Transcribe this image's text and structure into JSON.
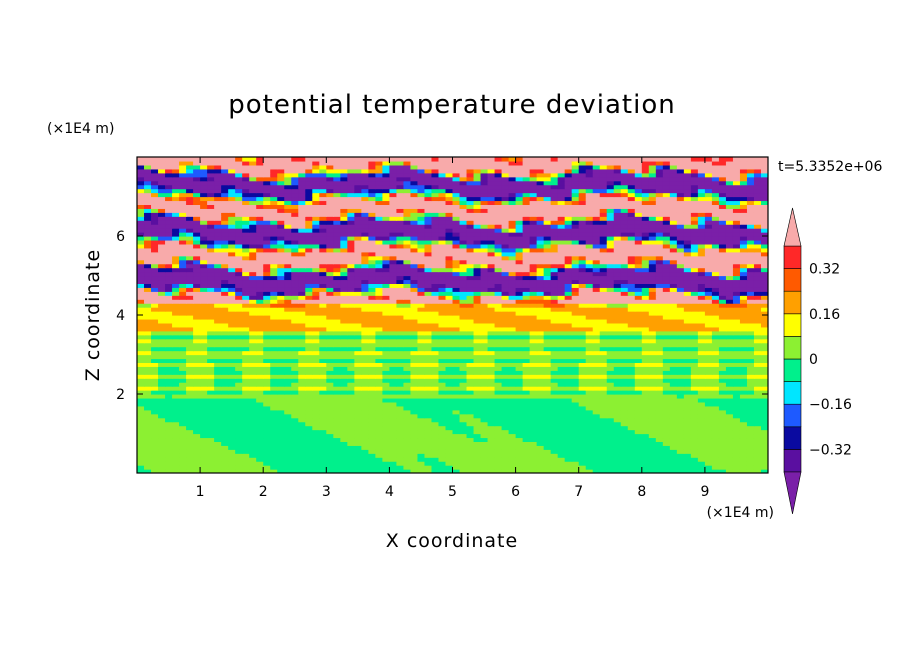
{
  "chart_data": {
    "type": "heatmap",
    "title": "potential temperature deviation",
    "xlabel": "X coordinate",
    "ylabel": "Z coordinate",
    "x_unit": "(×1E4 m)",
    "y_unit": "(×1E4 m)",
    "time_label": "t=5.3352e+06",
    "xlim": [
      0,
      10
    ],
    "ylim": [
      0,
      8
    ],
    "x_ticks": [
      "1",
      "2",
      "3",
      "4",
      "5",
      "6",
      "7",
      "8",
      "9"
    ],
    "y_ticks": [
      "2",
      "4",
      "6"
    ],
    "colorbar": {
      "levels": [
        -0.4,
        -0.32,
        -0.24,
        -0.16,
        -0.08,
        0,
        0.08,
        0.16,
        0.24,
        0.32,
        0.4
      ],
      "tick_labels": [
        "0.32",
        "0.16",
        "0",
        "−0.16",
        "−0.32"
      ],
      "tick_values": [
        0.32,
        0.16,
        0,
        -0.16,
        -0.32
      ],
      "colors": [
        "#7a1fa8",
        "#5a0fa0",
        "#0a0aa0",
        "#1e5aff",
        "#00e6ff",
        "#00f08c",
        "#8cf032",
        "#ffff00",
        "#ffa000",
        "#ff5a00",
        "#ff2828",
        "#f8aaaa"
      ],
      "extend": "both"
    },
    "bands": [
      {
        "z": [
          0.0,
          1.9
        ],
        "description": "mixed green / light-green",
        "dominant": [
          -0.04,
          0.04
        ]
      },
      {
        "z": [
          1.9,
          3.6
        ],
        "description": "green layers with thin cyan/yellow lines",
        "dominant": [
          0.0,
          0.08
        ]
      },
      {
        "z": [
          3.6,
          4.3
        ],
        "description": "yellow layer",
        "dominant": [
          0.16,
          0.24
        ]
      },
      {
        "z": [
          4.3,
          6.2
        ],
        "description": "alternating purple / pink turbulent layers",
        "dominant": [
          -0.4,
          0.4
        ]
      },
      {
        "z": [
          6.2,
          8.0
        ],
        "description": "purple and pink streaks",
        "dominant": [
          -0.4,
          0.4
        ]
      }
    ]
  }
}
